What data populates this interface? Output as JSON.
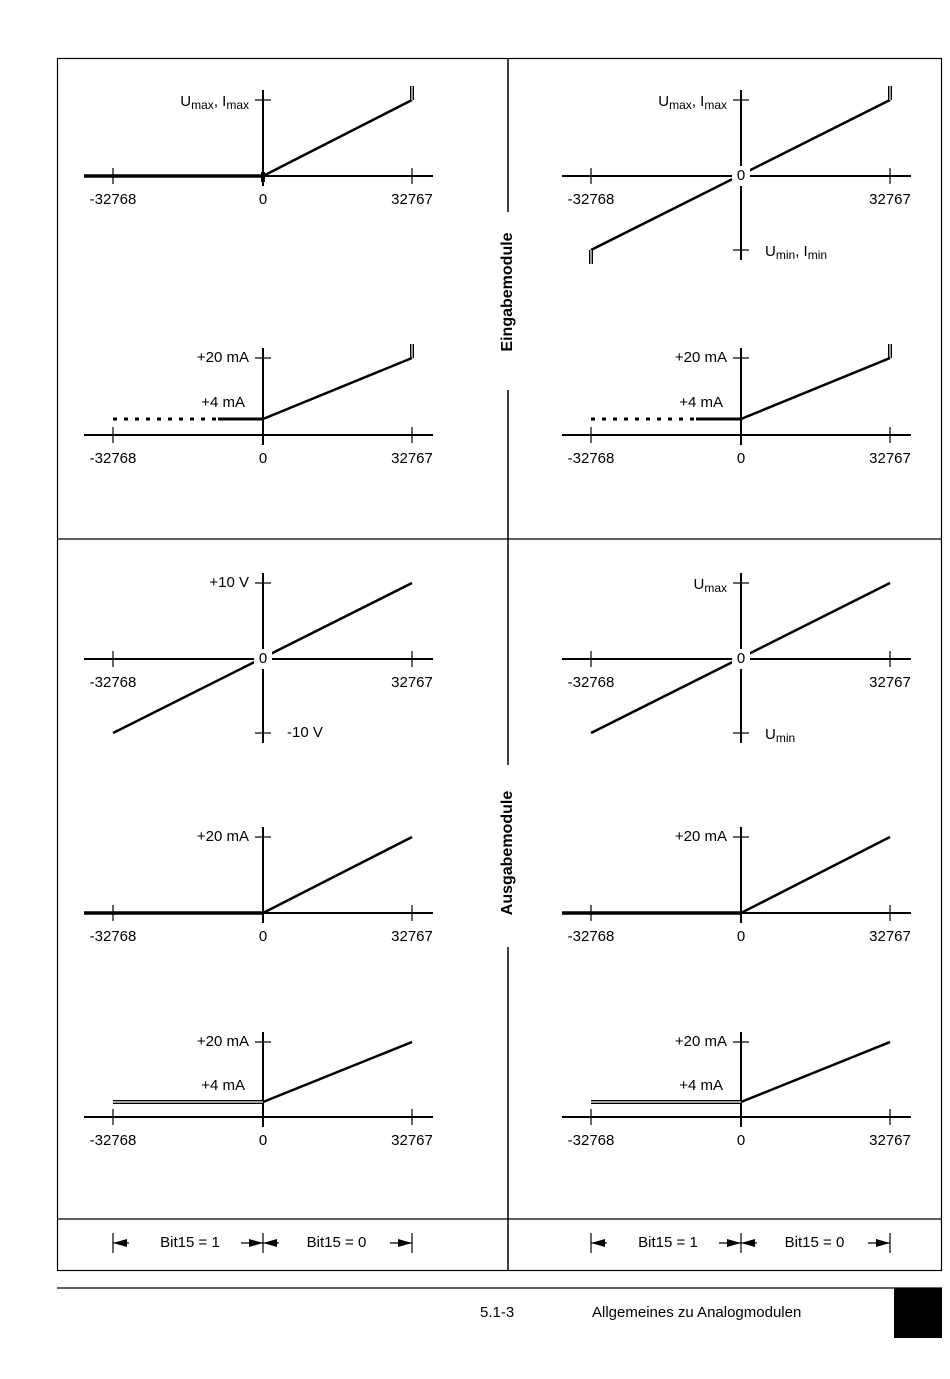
{
  "input_section": "Eingabemodule",
  "output_section": "Ausgabemodule",
  "panels": [
    {
      "top_label": [
        "U",
        "max",
        ", I",
        "max"
      ],
      "x_labels": [
        "-32768",
        "0",
        "32767"
      ]
    },
    {
      "top_label": [
        "U",
        "max",
        ", I",
        "max"
      ],
      "origin_label": "0",
      "bottom_label": [
        "U",
        "min",
        ", I",
        "min"
      ],
      "x_labels": [
        "-32768",
        "32767"
      ]
    },
    {
      "top_label": [
        "+20 mA"
      ],
      "mid_label": [
        "+4 mA"
      ],
      "x_labels": [
        "-32768",
        "0",
        "32767"
      ]
    },
    {
      "top_label": [
        "+20 mA"
      ],
      "mid_label": [
        "+4 mA"
      ],
      "x_labels": [
        "-32768",
        "0",
        "32767"
      ]
    },
    {
      "top_label": [
        "+10 V"
      ],
      "origin_label": "0",
      "bottom_label": [
        "-10 V"
      ],
      "x_labels": [
        "-32768",
        "32767"
      ]
    },
    {
      "top_label": [
        "U",
        "max"
      ],
      "origin_label": "0",
      "bottom_label": [
        "U",
        "min"
      ],
      "x_labels": [
        "-32768",
        "32767"
      ]
    },
    {
      "top_label": [
        "+20 mA"
      ],
      "x_labels": [
        "-32768",
        "0",
        "32767"
      ]
    },
    {
      "top_label": [
        "+20 mA"
      ],
      "x_labels": [
        "-32768",
        "0",
        "32767"
      ]
    },
    {
      "top_label": [
        "+20 mA"
      ],
      "mid_label": [
        "+4 mA"
      ],
      "x_labels": [
        "-32768",
        "0",
        "32767"
      ]
    },
    {
      "top_label": [
        "+20 mA"
      ],
      "mid_label": [
        "+4 mA"
      ],
      "x_labels": [
        "-32768",
        "0",
        "32767"
      ]
    }
  ],
  "bit_scale": [
    {
      "left": "Bit15 = 1",
      "right": "Bit15 = 0"
    },
    {
      "left": "Bit15 = 1",
      "right": "Bit15 = 0"
    }
  ],
  "footer": {
    "page": "5.1-3",
    "title": "Allgemeines zu Analogmodulen"
  }
}
